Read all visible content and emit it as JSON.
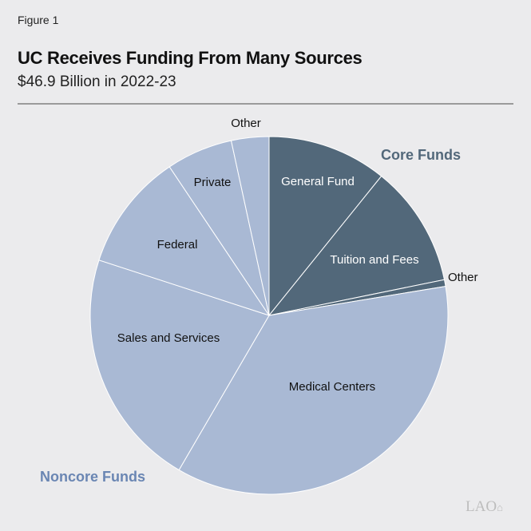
{
  "figure_label": "Figure 1",
  "chart_data": {
    "type": "pie",
    "title": "UC Receives Funding From Many Sources",
    "subtitle": "$46.9 Billion in 2022-23",
    "unit": "percent share (estimated)",
    "start": "12 o'clock, clockwise",
    "slices": [
      {
        "label": "General Fund",
        "value": 10.8,
        "group": "Core Funds",
        "label_color": "#ffffff"
      },
      {
        "label": "Tuition and Fees",
        "value": 11.0,
        "group": "Core Funds",
        "label_color": "#ffffff"
      },
      {
        "label": "Other",
        "value": 0.6,
        "group": "Core Funds",
        "label_color": "#111111"
      },
      {
        "label": "Medical Centers",
        "value": 36.0,
        "group": "Noncore Funds",
        "label_color": "#111111"
      },
      {
        "label": "Sales and Services",
        "value": 21.6,
        "group": "Noncore Funds",
        "label_color": "#111111"
      },
      {
        "label": "Federal",
        "value": 10.6,
        "group": "Noncore Funds",
        "label_color": "#111111"
      },
      {
        "label": "Private",
        "value": 6.0,
        "group": "Noncore Funds",
        "label_color": "#111111"
      },
      {
        "label": "Other",
        "value": 3.4,
        "group": "Noncore Funds",
        "label_color": "#111111"
      }
    ],
    "groups": [
      {
        "name": "Core Funds",
        "color": "#52687a",
        "label_color": "#52687a"
      },
      {
        "name": "Noncore Funds",
        "color": "#a9b9d4",
        "label_color": "#6a86b3"
      }
    ]
  },
  "logo_text": "LAO"
}
